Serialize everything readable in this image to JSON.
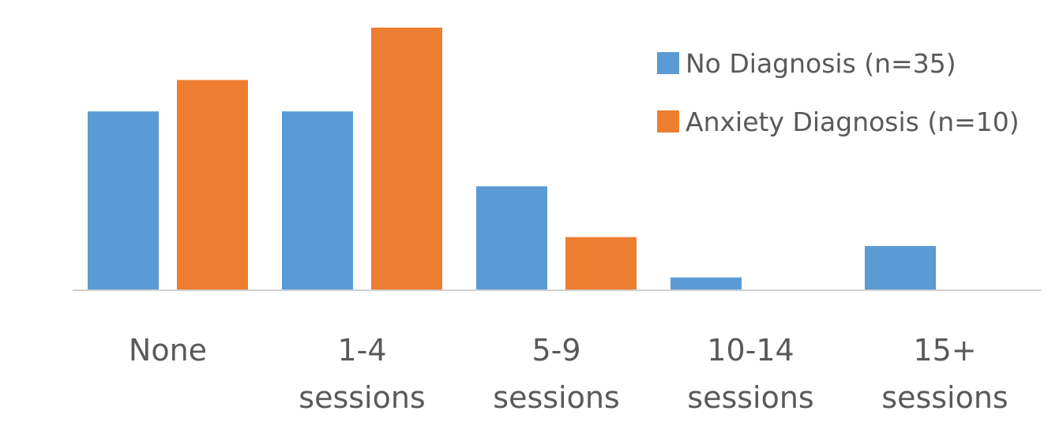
{
  "chart_data": {
    "type": "bar",
    "title": "",
    "xlabel": "",
    "ylabel": "",
    "ylim": [
      0,
      50
    ],
    "grid": false,
    "legend_position": "top-right",
    "categories": [
      [
        "None"
      ],
      [
        "1-4",
        "sessions"
      ],
      [
        "5-9",
        "sessions"
      ],
      [
        "10-14",
        "sessions"
      ],
      [
        "15+",
        "sessions"
      ]
    ],
    "series": [
      {
        "name": "No Diagnosis (n=35)",
        "color": "#5B9BD5",
        "values": [
          34,
          34,
          19.7,
          2.3,
          8.3
        ]
      },
      {
        "name": "Anxiety Diagnosis (n=10)",
        "color": "#ED7D31",
        "values": [
          40,
          50,
          10,
          0,
          0
        ]
      }
    ]
  }
}
